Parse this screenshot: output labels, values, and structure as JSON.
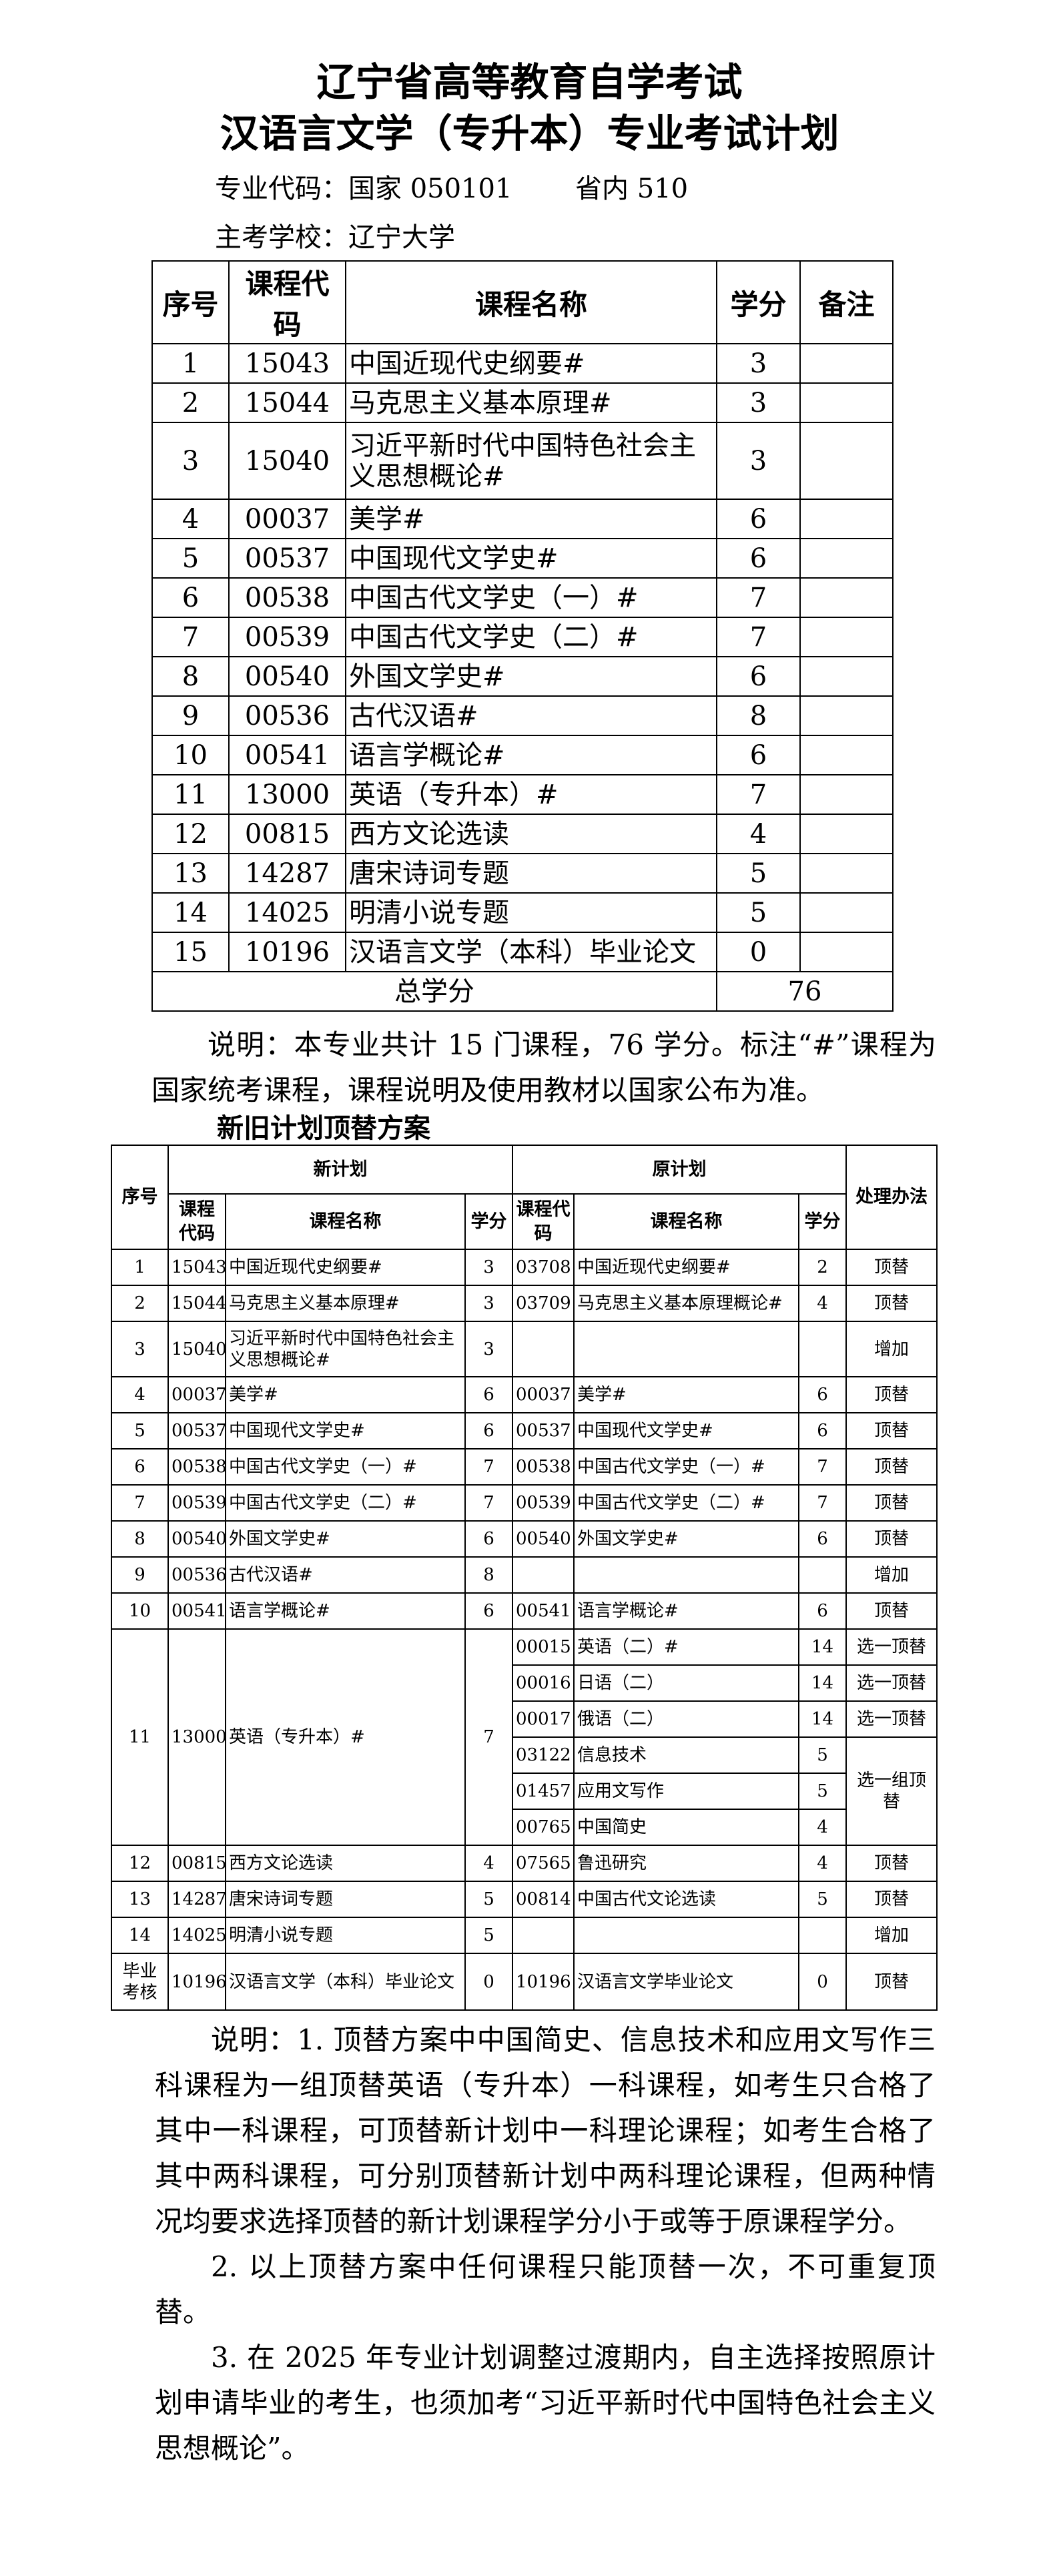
{
  "title": {
    "line1": "辽宁省高等教育自学考试",
    "line2": "汉语言文学（专升本）专业考试计划"
  },
  "meta": {
    "major_code": "专业代码：国家 050101",
    "province_code": "省内 510",
    "school": "主考学校：辽宁大学"
  },
  "plan_table": {
    "headers": [
      "序号",
      "课程代码",
      "课程名称",
      "学分",
      "备注"
    ],
    "rows": [
      [
        "1",
        "15043",
        "中国近现代史纲要#",
        "3",
        ""
      ],
      [
        "2",
        "15044",
        "马克思主义基本原理#",
        "3",
        ""
      ],
      [
        "3",
        "15040",
        "习近平新时代中国特色社会主义思想概论#",
        "3",
        ""
      ],
      [
        "4",
        "00037",
        "美学#",
        "6",
        ""
      ],
      [
        "5",
        "00537",
        "中国现代文学史#",
        "6",
        ""
      ],
      [
        "6",
        "00538",
        "中国古代文学史（一）#",
        "7",
        ""
      ],
      [
        "7",
        "00539",
        "中国古代文学史（二）#",
        "7",
        ""
      ],
      [
        "8",
        "00540",
        "外国文学史#",
        "6",
        ""
      ],
      [
        "9",
        "00536",
        "古代汉语#",
        "8",
        ""
      ],
      [
        "10",
        "00541",
        "语言学概论#",
        "6",
        ""
      ],
      [
        "11",
        "13000",
        "英语（专升本）#",
        "7",
        ""
      ],
      [
        "12",
        "00815",
        "西方文论选读",
        "4",
        ""
      ],
      [
        "13",
        "14287",
        "唐宋诗词专题",
        "5",
        ""
      ],
      [
        "14",
        "14025",
        "明清小说专题",
        "5",
        ""
      ],
      [
        "15",
        "10196",
        "汉语言文学（本科）毕业论文",
        "0",
        ""
      ]
    ],
    "total_label": "总学分",
    "total_value": "76"
  },
  "plan_note": "说明：本专业共计 15 门课程，76 学分。标注“#”课程为国家统考课程，课程说明及使用教材以国家公布为准。",
  "replace_title": "新旧计划顶替方案",
  "replace_table": {
    "headers": {
      "seq": "序号",
      "new_plan": "新计划",
      "old_plan": "原计划",
      "method": "处理办法",
      "code": "课程代码",
      "name": "课程名称",
      "credit": "学分"
    },
    "rows": [
      {
        "seq": "1",
        "new": [
          "15043",
          "中国近现代史纲要#",
          "3"
        ],
        "old": [
          "03708",
          "中国近现代史纲要#",
          "2"
        ],
        "method": "顶替"
      },
      {
        "seq": "2",
        "new": [
          "15044",
          "马克思主义基本原理#",
          "3"
        ],
        "old": [
          "03709",
          "马克思主义基本原理概论#",
          "4"
        ],
        "method": "顶替"
      },
      {
        "seq": "3",
        "new": [
          "15040",
          "习近平新时代中国特色社会主义思想概论#",
          "3"
        ],
        "old": [
          "",
          "",
          ""
        ],
        "method": "增加"
      },
      {
        "seq": "4",
        "new": [
          "00037",
          "美学#",
          "6"
        ],
        "old": [
          "00037",
          "美学#",
          "6"
        ],
        "method": "顶替"
      },
      {
        "seq": "5",
        "new": [
          "00537",
          "中国现代文学史#",
          "6"
        ],
        "old": [
          "00537",
          "中国现代文学史#",
          "6"
        ],
        "method": "顶替"
      },
      {
        "seq": "6",
        "new": [
          "00538",
          "中国古代文学史（一）#",
          "7"
        ],
        "old": [
          "00538",
          "中国古代文学史（一）#",
          "7"
        ],
        "method": "顶替"
      },
      {
        "seq": "7",
        "new": [
          "00539",
          "中国古代文学史（二）#",
          "7"
        ],
        "old": [
          "00539",
          "中国古代文学史（二）#",
          "7"
        ],
        "method": "顶替"
      },
      {
        "seq": "8",
        "new": [
          "00540",
          "外国文学史#",
          "6"
        ],
        "old": [
          "00540",
          "外国文学史#",
          "6"
        ],
        "method": "顶替"
      },
      {
        "seq": "9",
        "new": [
          "00536",
          "古代汉语#",
          "8"
        ],
        "old": [
          "",
          "",
          ""
        ],
        "method": "增加"
      },
      {
        "seq": "10",
        "new": [
          "00541",
          "语言学概论#",
          "6"
        ],
        "old": [
          "00541",
          "语言学概论#",
          "6"
        ],
        "method": "顶替"
      }
    ],
    "row11": {
      "seq": "11",
      "new": [
        "13000",
        "英语（专升本）#",
        "7"
      ],
      "old": [
        [
          "00015",
          "英语（二）#",
          "14"
        ],
        [
          "00016",
          "日语（二）",
          "14"
        ],
        [
          "00017",
          "俄语（二）",
          "14"
        ],
        [
          "03122",
          "信息技术",
          "5"
        ],
        [
          "01457",
          "应用文写作",
          "5"
        ],
        [
          "00765",
          "中国简史",
          "4"
        ]
      ],
      "methods": [
        "选一顶替",
        "选一顶替",
        "选一顶替"
      ],
      "group_method": "选一组顶替"
    },
    "rows_after": [
      {
        "seq": "12",
        "new": [
          "00815",
          "西方文论选读",
          "4"
        ],
        "old": [
          "07565",
          "鲁迅研究",
          "4"
        ],
        "method": "顶替"
      },
      {
        "seq": "13",
        "new": [
          "14287",
          "唐宋诗词专题",
          "5"
        ],
        "old": [
          "00814",
          "中国古代文论选读",
          "5"
        ],
        "method": "顶替"
      },
      {
        "seq": "14",
        "new": [
          "14025",
          "明清小说专题",
          "5"
        ],
        "old": [
          "",
          "",
          ""
        ],
        "method": "增加"
      },
      {
        "seq": "毕业考核",
        "new": [
          "10196",
          "汉语言文学（本科）毕业论文",
          "0"
        ],
        "old": [
          "10196",
          "汉语言文学毕业论文",
          "0"
        ],
        "method": "顶替"
      }
    ]
  },
  "notes": [
    "说明：1. 顶替方案中中国简史、信息技术和应用文写作三科课程为一组顶替英语（专升本）一科课程，如考生只合格了其中一科课程，可顶替新计划中一科理论课程；如考生合格了其中两科课程，可分别顶替新计划中两科理论课程，但两种情况均要求选择顶替的新计划课程学分小于或等于原课程学分。",
    "2. 以上顶替方案中任何课程只能顶替一次，不可重复顶替。",
    "3. 在 2025 年专业计划调整过渡期内，自主选择按照原计划申请毕业的考生，也须加考“习近平新时代中国特色社会主义思想概论”。"
  ]
}
